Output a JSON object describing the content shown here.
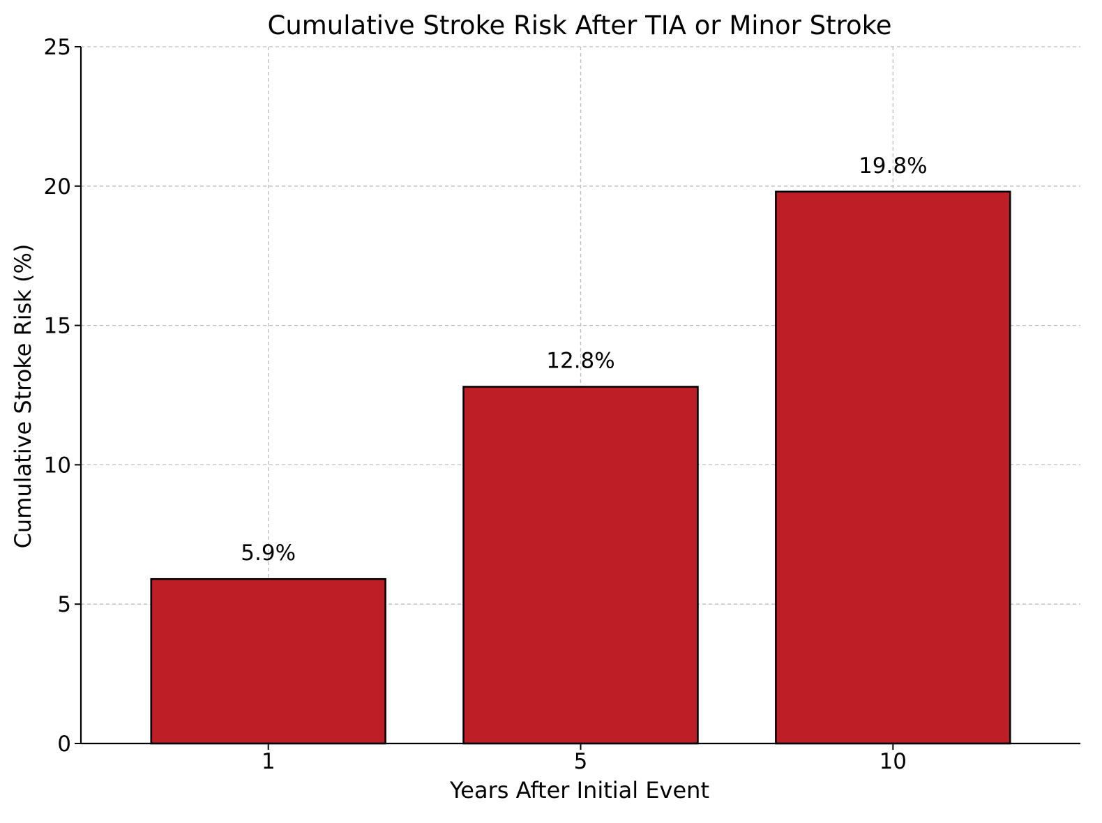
{
  "chart_data": {
    "type": "bar",
    "title": "Cumulative Stroke Risk After TIA or Minor Stroke",
    "xlabel": "Years After Initial Event",
    "ylabel": "Cumulative Stroke Risk (%)",
    "categories": [
      "1",
      "5",
      "10"
    ],
    "values": [
      5.9,
      12.8,
      19.8
    ],
    "data_labels": [
      "5.9%",
      "12.8%",
      "19.8%"
    ],
    "ylim": [
      0,
      25
    ],
    "yticks": [
      "0",
      "5",
      "10",
      "15",
      "20",
      "25"
    ],
    "grid": true,
    "bar_color": "#be1f26",
    "edge_color": "#000000"
  }
}
